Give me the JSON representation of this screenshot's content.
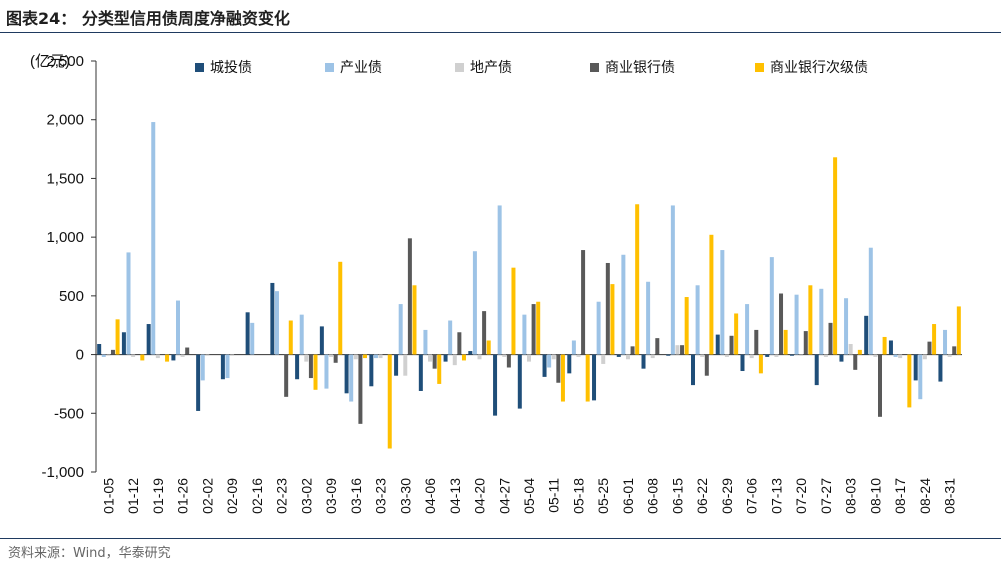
{
  "header": {
    "title": "图表24：  分类型信用债周度净融资变化"
  },
  "footer": {
    "source": "资料来源：Wind，华泰研究"
  },
  "chart_data": {
    "type": "bar",
    "unit": "(亿元)",
    "ylim": [
      -1000,
      2500
    ],
    "yticks": [
      -1000,
      -500,
      0,
      500,
      1000,
      1500,
      2000,
      2500
    ],
    "ytick_labels": [
      "-1,000",
      "-500",
      "0",
      "500",
      "1,000",
      "1,500",
      "2,000",
      "2,500"
    ],
    "legend_position": "top",
    "categories": [
      "01-05",
      "01-12",
      "01-19",
      "01-26",
      "02-02",
      "02-09",
      "02-16",
      "02-23",
      "03-02",
      "03-09",
      "03-16",
      "03-23",
      "03-30",
      "04-06",
      "04-13",
      "04-20",
      "04-27",
      "05-04",
      "05-11",
      "05-18",
      "05-25",
      "06-01",
      "06-08",
      "06-15",
      "06-22",
      "06-29",
      "07-06",
      "07-13",
      "07-20",
      "07-27",
      "08-03",
      "08-10",
      "08-17",
      "08-24",
      "08-31"
    ],
    "series": [
      {
        "name": "城投债",
        "color": "#1f4e79",
        "values": [
          90,
          190,
          260,
          -50,
          -480,
          -210,
          360,
          610,
          -210,
          240,
          -330,
          -270,
          -180,
          -310,
          -60,
          30,
          -520,
          -460,
          -190,
          -160,
          -390,
          -20,
          -120,
          -10,
          -260,
          170,
          -140,
          -20,
          -10,
          -260,
          -60,
          330,
          120,
          -220,
          -230
        ]
      },
      {
        "name": "产业债",
        "color": "#9dc3e6",
        "values": [
          -20,
          870,
          1980,
          460,
          -220,
          -200,
          270,
          540,
          340,
          -290,
          -400,
          -30,
          430,
          210,
          290,
          880,
          1270,
          340,
          -110,
          120,
          450,
          850,
          620,
          1270,
          590,
          890,
          430,
          830,
          510,
          560,
          480,
          910,
          -20,
          -380,
          210
        ]
      },
      {
        "name": "地产债",
        "color": "#d0d0d0",
        "values": [
          -10,
          -20,
          -30,
          -20,
          -10,
          -10,
          0,
          0,
          -60,
          -20,
          -40,
          -30,
          -180,
          -60,
          -90,
          -40,
          -20,
          -60,
          -40,
          -20,
          -80,
          -40,
          -30,
          80,
          -20,
          -20,
          -30,
          -20,
          -10,
          -20,
          90,
          -20,
          -30,
          -40,
          -20
        ]
      },
      {
        "name": "商业银行债",
        "color": "#595959",
        "values": [
          40,
          0,
          0,
          60,
          0,
          0,
          0,
          -360,
          -200,
          -70,
          -590,
          0,
          990,
          -120,
          190,
          370,
          -110,
          430,
          -240,
          890,
          780,
          70,
          140,
          80,
          -180,
          160,
          210,
          520,
          200,
          270,
          -130,
          -530,
          0,
          110,
          70
        ]
      },
      {
        "name": "商业银行次级债",
        "color": "#ffc000",
        "values": [
          300,
          -50,
          -60,
          0,
          0,
          0,
          0,
          290,
          -300,
          790,
          -30,
          -800,
          590,
          -250,
          -50,
          120,
          740,
          450,
          -400,
          -400,
          600,
          1280,
          0,
          490,
          1020,
          350,
          -160,
          210,
          590,
          1680,
          40,
          150,
          -450,
          260,
          410
        ]
      }
    ]
  }
}
